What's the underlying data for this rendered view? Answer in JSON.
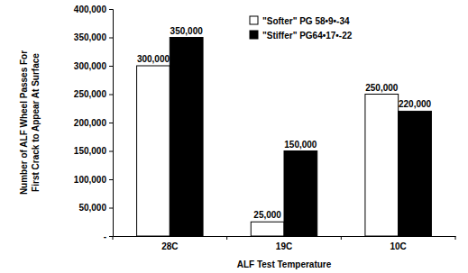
{
  "chart_data": {
    "type": "bar",
    "categories": [
      "28C",
      "19C",
      "10C"
    ],
    "series": [
      {
        "name": "\"Softer\" PG 58•9•-34",
        "color": "#ffffff",
        "values": [
          300000,
          25000,
          250000
        ],
        "value_labels": [
          "300,000",
          "25,000",
          "250,000"
        ]
      },
      {
        "name": "\"Stiffer\" PG64•17•-22",
        "color": "#000000",
        "values": [
          350000,
          150000,
          220000
        ],
        "value_labels": [
          "350,000",
          "150,000",
          "220,000"
        ]
      }
    ],
    "x_label": "ALF Test Temperature",
    "y_label": "Number of ALF Wheel Passes For First Crack to Appear At Surface",
    "ylim": [
      0,
      400000
    ],
    "yticks": [
      {
        "value": 0,
        "label": "-"
      },
      {
        "value": 50000,
        "label": "50,000"
      },
      {
        "value": 100000,
        "label": "100,000"
      },
      {
        "value": 150000,
        "label": "150,000"
      },
      {
        "value": 200000,
        "label": "200,000"
      },
      {
        "value": 250000,
        "label": "250,000"
      },
      {
        "value": 300000,
        "label": "300,000"
      },
      {
        "value": 350000,
        "label": "350,000"
      },
      {
        "value": 400000,
        "label": "400,000"
      }
    ],
    "grid": false,
    "legend": "top-right",
    "data_labels": true
  }
}
